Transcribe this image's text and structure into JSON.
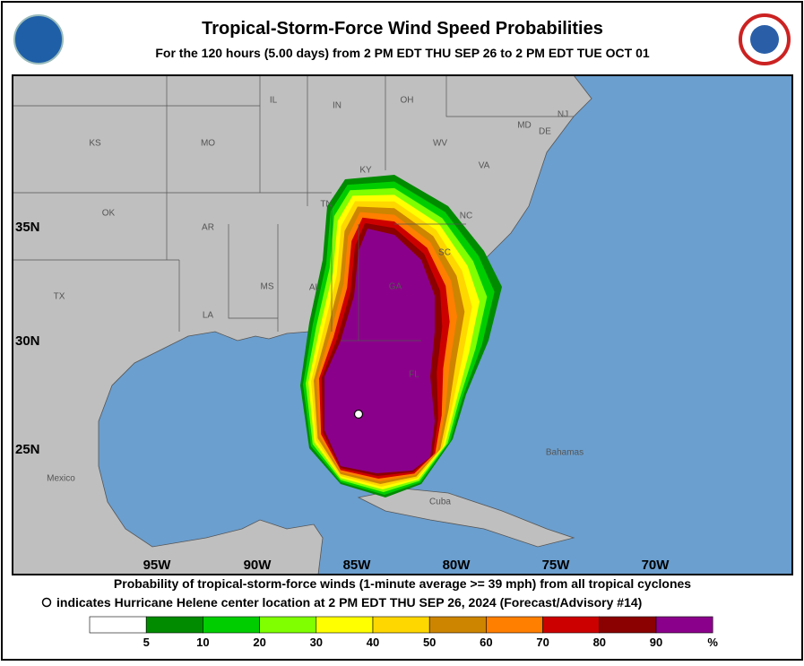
{
  "header": {
    "title": "Tropical-Storm-Force Wind Speed Probabilities",
    "subtitle": "For the 120 hours (5.00 days) from 2 PM EDT THU SEP 26 to 2 PM EDT TUE OCT 01"
  },
  "map": {
    "lat_labels": [
      "35N",
      "30N",
      "25N"
    ],
    "lon_labels": [
      "95W",
      "90W",
      "85W",
      "80W",
      "75W",
      "70W"
    ],
    "places": [
      "KS",
      "MO",
      "IL",
      "IN",
      "OH",
      "WV",
      "VA",
      "KY",
      "TN",
      "NC",
      "OK",
      "AR",
      "SC",
      "GA",
      "MS",
      "AL",
      "TX",
      "LA",
      "FL",
      "Mexico",
      "Cuba",
      "Bahamas",
      "MD",
      "DE",
      "NJ"
    ]
  },
  "footer": {
    "line1": "Probability of tropical-storm-force winds (1-minute average >= 39 mph) from all tropical cyclones",
    "line2": "indicates Hurricane Helene center location at 2 PM EDT THU SEP 26, 2024 (Forecast/Advisory #14)"
  },
  "legend": {
    "colors": [
      "#ffffff",
      "#008b00",
      "#00cd00",
      "#7fff00",
      "#ffff00",
      "#ffd700",
      "#cd8500",
      "#ff7f00",
      "#cd0000",
      "#8b0000",
      "#8b008b"
    ],
    "ticks": [
      5,
      10,
      20,
      30,
      40,
      50,
      60,
      70,
      80,
      90
    ],
    "unit": "%"
  }
}
